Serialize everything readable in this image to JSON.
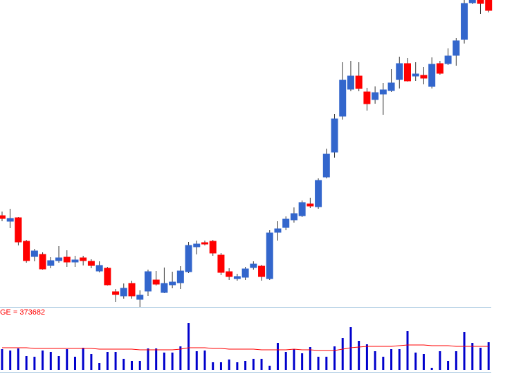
{
  "chart_data": [
    {
      "type": "candlestick",
      "categories": [
        null,
        null,
        null,
        null,
        null,
        null,
        null,
        null,
        null,
        null,
        null,
        null,
        null,
        null,
        null,
        null,
        null,
        null,
        null,
        null,
        null,
        null,
        null,
        null,
        null,
        null,
        null,
        null,
        null,
        null,
        null,
        null,
        null,
        null,
        null,
        null,
        null,
        null,
        null,
        null,
        null,
        null,
        null,
        null,
        null,
        null,
        null,
        null,
        null,
        null,
        null,
        null,
        null,
        null,
        null,
        null,
        null,
        null,
        null,
        null,
        null
      ],
      "open": [
        133,
        125,
        130,
        96,
        74,
        77,
        61,
        68,
        73,
        66,
        72,
        67,
        53,
        57,
        23,
        17,
        35,
        12,
        24,
        40,
        22,
        33,
        36,
        52,
        88,
        94,
        96,
        76,
        52,
        42,
        44,
        58,
        60,
        42,
        109,
        116,
        127,
        133,
        150,
        146,
        189,
        225,
        277,
        316,
        335,
        312,
        301,
        309,
        314,
        330,
        353,
        335,
        336,
        320,
        353,
        353,
        365,
        388,
        441,
        445,
        445
      ],
      "high": [
        139,
        143,
        131,
        98,
        85,
        80,
        73,
        89,
        83,
        75,
        75,
        70,
        67,
        59,
        27,
        35,
        39,
        25,
        55,
        53,
        58,
        52,
        60,
        95,
        97,
        97,
        98,
        79,
        57,
        49,
        59,
        67,
        62,
        112,
        125,
        132,
        145,
        155,
        159,
        187,
        230,
        280,
        355,
        357,
        355,
        318,
        320,
        325,
        345,
        363,
        361,
        355,
        348,
        362,
        357,
        375,
        390,
        445,
        447,
        447,
        447
      ],
      "low": [
        125,
        115,
        90,
        65,
        67,
        55,
        57,
        65,
        59,
        59,
        61,
        57,
        51,
        32,
        8,
        13,
        13,
        1,
        17,
        32,
        21,
        28,
        27,
        50,
        77,
        90,
        75,
        47,
        40,
        39,
        40,
        55,
        39,
        40,
        97,
        112,
        123,
        131,
        144,
        143,
        187,
        217,
        272,
        313,
        313,
        285,
        295,
        279,
        312,
        317,
        327,
        328,
        323,
        317,
        337,
        351,
        350,
        382,
        439,
        425,
        427
      ],
      "close": [
        129,
        129,
        95,
        68,
        82,
        56,
        68,
        72,
        66,
        69,
        68,
        61,
        61,
        33,
        19,
        28,
        17,
        18,
        52,
        34,
        35,
        37,
        53,
        90,
        92,
        92,
        79,
        51,
        45,
        45,
        56,
        63,
        45,
        108,
        114,
        128,
        136,
        152,
        147,
        184,
        222,
        273,
        329,
        335,
        317,
        295,
        311,
        315,
        325,
        353,
        328,
        338,
        332,
        352,
        339,
        364,
        386,
        440,
        445,
        440,
        430
      ],
      "up_color": "#3366cc",
      "down_color": "#ff0000",
      "ylim": [
        0,
        445
      ]
    },
    {
      "type": "volume",
      "annotation": "GE = 373682",
      "values": [
        321000,
        299600,
        331700,
        214000,
        203300,
        299600,
        278200,
        214000,
        321000,
        203300,
        342400,
        246100,
        107000,
        278200,
        278200,
        171200,
        139100,
        139100,
        331700,
        331700,
        267500,
        267500,
        363800,
        727600,
        288900,
        299600,
        117700,
        117700,
        160500,
        117700,
        139100,
        171200,
        171200,
        64200,
        417300,
        278200,
        321000,
        256800,
        353100,
        203300,
        203300,
        363800,
        492200,
        663400,
        449400,
        395900,
        288900,
        203300,
        321000,
        321000,
        599200,
        267500,
        246100,
        32100,
        288900,
        139100,
        288900,
        588500,
        417300,
        342400,
        428000
      ],
      "average": [
        342400,
        342400,
        342400,
        342400,
        331700,
        331700,
        331700,
        331700,
        331700,
        331700,
        331700,
        331700,
        321000,
        321000,
        321000,
        321000,
        321000,
        310300,
        310300,
        310300,
        310300,
        310300,
        321000,
        342400,
        342400,
        342400,
        331700,
        331700,
        321000,
        321000,
        321000,
        321000,
        310300,
        310300,
        310300,
        310300,
        321000,
        310300,
        310300,
        299600,
        299600,
        299600,
        321000,
        342400,
        353100,
        363800,
        363800,
        363800,
        363800,
        374500,
        385200,
        385200,
        385200,
        374500,
        374500,
        374500,
        363800,
        363800,
        363800,
        363800,
        363800
      ],
      "color": "#0000cc",
      "average_color": "#ff0000",
      "ylim": [
        0,
        1000000
      ]
    }
  ]
}
